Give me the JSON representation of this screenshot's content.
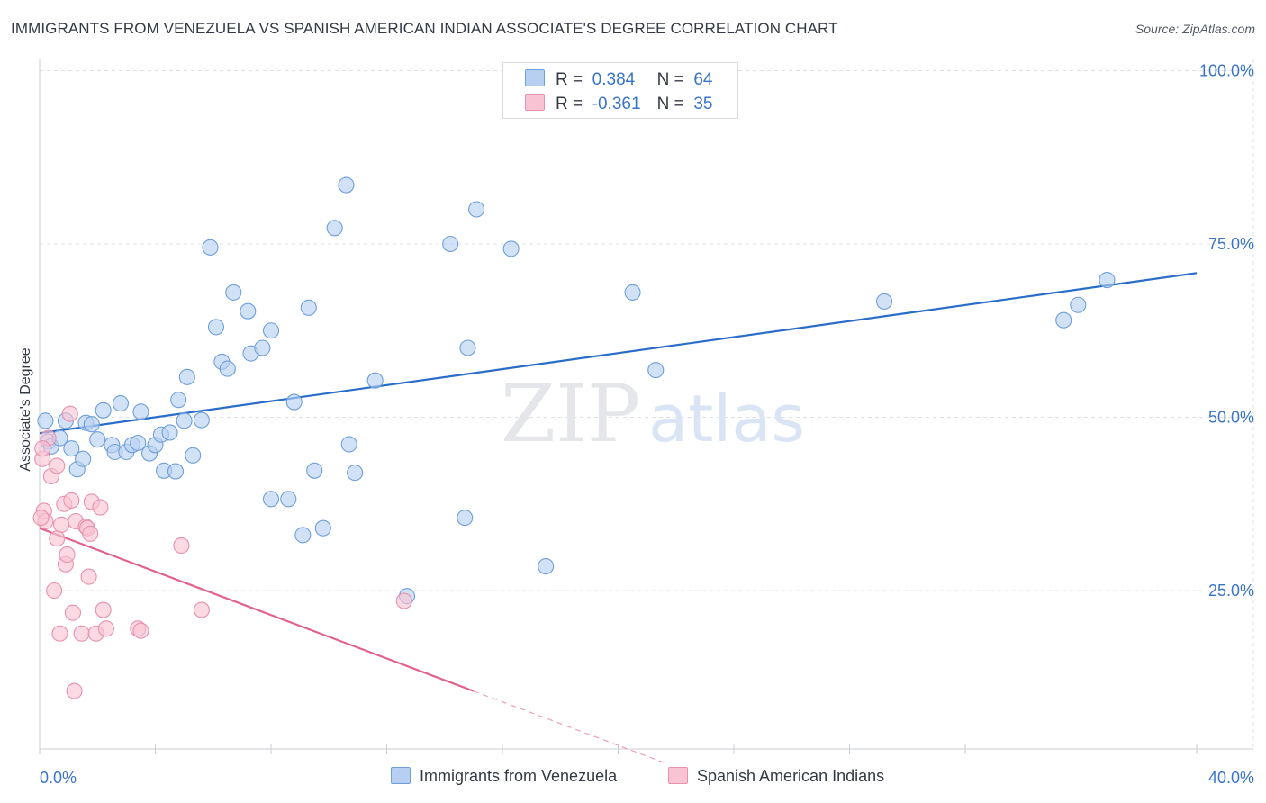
{
  "title": "IMMIGRANTS FROM VENEZUELA VS SPANISH AMERICAN INDIAN ASSOCIATE'S DEGREE CORRELATION CHART",
  "source": "Source: ZipAtlas.com",
  "watermark": {
    "zip": "ZIP",
    "atlas": "atlas"
  },
  "colors": {
    "blue_fill": "#b7d0f1",
    "blue_stroke": "#6f9fd8",
    "blue_line": "#2a6dc9",
    "pink_fill": "#f8c3d3",
    "pink_stroke": "#e891ad",
    "pink_line": "#e0628d",
    "grid": "#dde1e6",
    "axis_label": "#3a74c7"
  },
  "legend": {
    "r_label": "R =",
    "n_label": "N =",
    "blue": {
      "r": "0.384",
      "n": "64"
    },
    "pink": {
      "r": "-0.361",
      "n": "35"
    }
  },
  "chart_data": {
    "type": "scatter",
    "title": "IMMIGRANTS FROM VENEZUELA VS SPANISH AMERICAN INDIAN ASSOCIATE'S DEGREE CORRELATION CHART",
    "xlabel": "",
    "ylabel": "Associate's Degree",
    "xlim": [
      0,
      40
    ],
    "ylim": [
      0,
      100
    ],
    "x_tick_labels": [
      "0.0%",
      "40.0%"
    ],
    "y_tick_labels": [
      "100.0%",
      "75.0%",
      "50.0%",
      "25.0%"
    ],
    "y_ticks": [
      100,
      75,
      50,
      25
    ],
    "grid": true,
    "legend_placement": "top-center",
    "series": [
      {
        "name": "Immigrants from Venezuela",
        "color": "blue",
        "trend": {
          "x0": 0,
          "y0": 47.7,
          "x1": 40,
          "y1": 70.8
        },
        "points": [
          [
            0.2,
            49.5
          ],
          [
            0.3,
            46.5
          ],
          [
            0.4,
            45.8
          ],
          [
            0.7,
            47.0
          ],
          [
            0.9,
            49.5
          ],
          [
            1.1,
            45.5
          ],
          [
            1.3,
            42.5
          ],
          [
            1.5,
            44.0
          ],
          [
            1.6,
            49.2
          ],
          [
            1.8,
            49.0
          ],
          [
            2.0,
            46.8
          ],
          [
            2.2,
            51.0
          ],
          [
            2.5,
            46.0
          ],
          [
            2.6,
            45.0
          ],
          [
            2.8,
            52.0
          ],
          [
            3.0,
            45.0
          ],
          [
            3.2,
            46.0
          ],
          [
            3.4,
            46.3
          ],
          [
            3.5,
            50.8
          ],
          [
            3.8,
            44.8
          ],
          [
            4.0,
            46.0
          ],
          [
            4.2,
            47.5
          ],
          [
            4.3,
            42.3
          ],
          [
            4.5,
            47.8
          ],
          [
            4.7,
            42.2
          ],
          [
            4.8,
            52.5
          ],
          [
            5.0,
            49.5
          ],
          [
            5.1,
            55.8
          ],
          [
            5.3,
            44.5
          ],
          [
            5.6,
            49.6
          ],
          [
            5.9,
            74.5
          ],
          [
            6.1,
            63.0
          ],
          [
            6.3,
            58.0
          ],
          [
            6.5,
            57.0
          ],
          [
            6.7,
            68.0
          ],
          [
            7.2,
            65.3
          ],
          [
            7.3,
            59.2
          ],
          [
            7.7,
            60.0
          ],
          [
            8.0,
            62.5
          ],
          [
            8.0,
            38.2
          ],
          [
            8.6,
            38.2
          ],
          [
            8.8,
            52.2
          ],
          [
            9.1,
            33.0
          ],
          [
            9.3,
            65.8
          ],
          [
            9.5,
            42.3
          ],
          [
            9.8,
            34.0
          ],
          [
            10.2,
            77.3
          ],
          [
            10.6,
            83.5
          ],
          [
            10.7,
            46.1
          ],
          [
            10.9,
            42.0
          ],
          [
            11.6,
            55.3
          ],
          [
            12.7,
            24.2
          ],
          [
            14.2,
            75.0
          ],
          [
            14.7,
            35.5
          ],
          [
            14.8,
            60.0
          ],
          [
            15.1,
            80.0
          ],
          [
            16.3,
            74.3
          ],
          [
            17.5,
            28.5
          ],
          [
            20.5,
            68.0
          ],
          [
            21.3,
            56.8
          ],
          [
            29.2,
            66.7
          ],
          [
            35.4,
            64.0
          ],
          [
            35.9,
            66.2
          ],
          [
            36.9,
            69.8
          ]
        ]
      },
      {
        "name": "Spanish American Indians",
        "color": "pink",
        "trend": {
          "x0": 0,
          "y0": 34.0,
          "x1": 15.0,
          "y1": 10.5
        },
        "trend_dashed_to": {
          "x": 21.7,
          "y": 0.0
        },
        "points": [
          [
            0.1,
            44.0
          ],
          [
            0.15,
            36.5
          ],
          [
            0.2,
            35.0
          ],
          [
            0.3,
            47.0
          ],
          [
            0.4,
            41.5
          ],
          [
            0.5,
            25.0
          ],
          [
            0.6,
            32.5
          ],
          [
            0.6,
            43.0
          ],
          [
            0.7,
            18.8
          ],
          [
            0.75,
            34.5
          ],
          [
            0.85,
            37.5
          ],
          [
            0.9,
            28.8
          ],
          [
            0.95,
            30.2
          ],
          [
            1.05,
            50.5
          ],
          [
            1.1,
            38.0
          ],
          [
            1.15,
            21.8
          ],
          [
            1.2,
            10.5
          ],
          [
            1.25,
            35.0
          ],
          [
            1.45,
            18.8
          ],
          [
            1.6,
            34.2
          ],
          [
            1.65,
            34.0
          ],
          [
            1.7,
            27.0
          ],
          [
            1.75,
            33.2
          ],
          [
            1.8,
            37.8
          ],
          [
            1.95,
            18.8
          ],
          [
            2.1,
            37.0
          ],
          [
            2.2,
            22.2
          ],
          [
            2.3,
            19.5
          ],
          [
            3.4,
            19.5
          ],
          [
            3.5,
            19.2
          ],
          [
            4.9,
            31.5
          ],
          [
            5.6,
            22.2
          ],
          [
            12.6,
            23.5
          ],
          [
            0.1,
            45.5
          ],
          [
            0.05,
            35.5
          ]
        ]
      }
    ]
  }
}
